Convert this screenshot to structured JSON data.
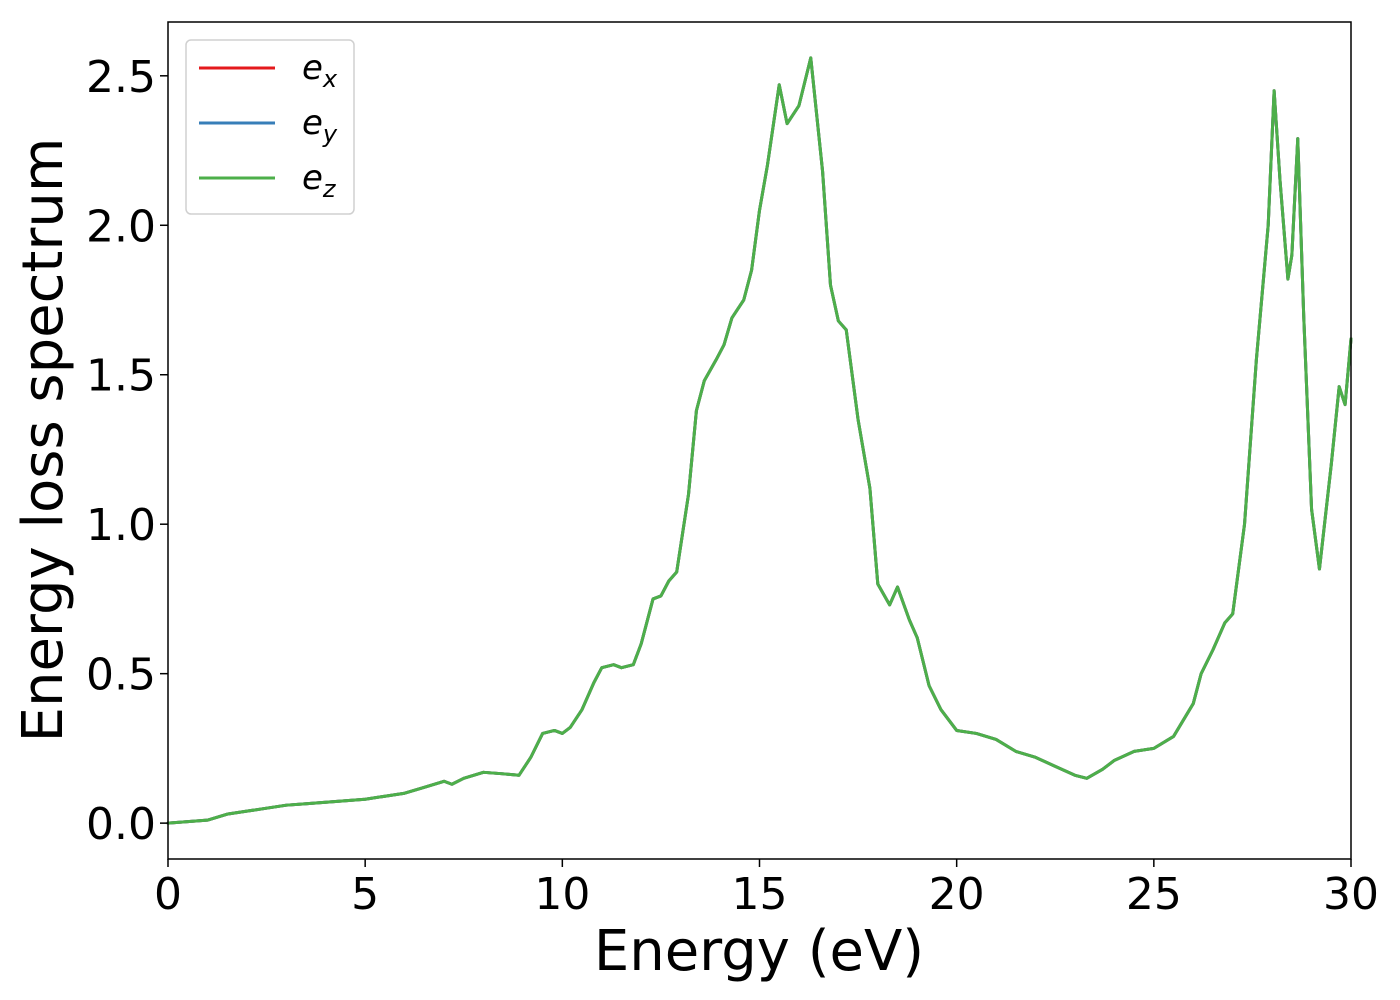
{
  "chart_data": {
    "type": "line",
    "xlabel": "Energy (eV)",
    "ylabel": "Energy loss spectrum",
    "xlim": [
      0,
      30
    ],
    "ylim": [
      -0.12,
      2.68
    ],
    "xticks": [
      "0",
      "5",
      "10",
      "15",
      "20",
      "25",
      "30"
    ],
    "yticks": [
      "0.0",
      "0.5",
      "1.0",
      "1.5",
      "2.0",
      "2.5"
    ],
    "grid": false,
    "legend_position": "top-left",
    "legend": [
      {
        "base": "e",
        "sub": "x",
        "color": "#e41a1c"
      },
      {
        "base": "e",
        "sub": "y",
        "color": "#377eb8"
      },
      {
        "base": "e",
        "sub": "z",
        "color": "#4daf4a"
      }
    ],
    "series": [
      {
        "name": "ex",
        "color": "#e41a1c",
        "x": [
          0,
          1,
          1.5,
          2,
          2.5,
          3,
          3.5,
          4,
          4.5,
          5,
          5.5,
          6,
          6.5,
          7,
          7.2,
          7.5,
          8,
          8.5,
          8.9,
          9.2,
          9.5,
          9.8,
          10,
          10.2,
          10.5,
          10.8,
          11,
          11.3,
          11.5,
          11.8,
          12,
          12.3,
          12.5,
          12.7,
          12.9,
          13.2,
          13.4,
          13.6,
          13.9,
          14.1,
          14.3,
          14.6,
          14.8,
          15,
          15.2,
          15.5,
          15.7,
          16,
          16.3,
          16.6,
          16.8,
          17,
          17.2,
          17.5,
          17.8,
          18,
          18.3,
          18.5,
          18.8,
          19,
          19.3,
          19.6,
          20,
          20.5,
          21,
          21.5,
          22,
          22.5,
          23,
          23.3,
          23.7,
          24,
          24.5,
          25,
          25.5,
          26,
          26.2,
          26.5,
          26.8,
          27,
          27.3,
          27.6,
          27.9,
          28.05,
          28.2,
          28.4,
          28.5,
          28.65,
          28.8,
          29,
          29.2,
          29.5,
          29.7,
          29.85,
          30
        ],
        "values": [
          0,
          0.01,
          0.03,
          0.04,
          0.05,
          0.06,
          0.065,
          0.07,
          0.075,
          0.08,
          0.09,
          0.1,
          0.12,
          0.14,
          0.13,
          0.15,
          0.17,
          0.165,
          0.16,
          0.22,
          0.3,
          0.31,
          0.3,
          0.32,
          0.38,
          0.47,
          0.52,
          0.53,
          0.52,
          0.53,
          0.6,
          0.75,
          0.76,
          0.81,
          0.84,
          1.1,
          1.38,
          1.48,
          1.55,
          1.6,
          1.69,
          1.75,
          1.85,
          2.05,
          2.2,
          2.47,
          2.34,
          2.4,
          2.56,
          2.18,
          1.8,
          1.68,
          1.65,
          1.35,
          1.12,
          0.8,
          0.73,
          0.79,
          0.68,
          0.62,
          0.46,
          0.38,
          0.31,
          0.3,
          0.28,
          0.24,
          0.22,
          0.19,
          0.16,
          0.15,
          0.18,
          0.21,
          0.24,
          0.25,
          0.29,
          0.4,
          0.5,
          0.58,
          0.67,
          0.7,
          1.0,
          1.55,
          2.0,
          2.45,
          2.15,
          1.82,
          1.9,
          2.29,
          1.7,
          1.05,
          0.85,
          1.2,
          1.46,
          1.4,
          1.62
        ]
      },
      {
        "name": "ey",
        "color": "#377eb8",
        "x": [
          0,
          1,
          1.5,
          2,
          2.5,
          3,
          3.5,
          4,
          4.5,
          5,
          5.5,
          6,
          6.5,
          7,
          7.2,
          7.5,
          8,
          8.5,
          8.9,
          9.2,
          9.5,
          9.8,
          10,
          10.2,
          10.5,
          10.8,
          11,
          11.3,
          11.5,
          11.8,
          12,
          12.3,
          12.5,
          12.7,
          12.9,
          13.2,
          13.4,
          13.6,
          13.9,
          14.1,
          14.3,
          14.6,
          14.8,
          15,
          15.2,
          15.5,
          15.7,
          16,
          16.3,
          16.6,
          16.8,
          17,
          17.2,
          17.5,
          17.8,
          18,
          18.3,
          18.5,
          18.8,
          19,
          19.3,
          19.6,
          20,
          20.5,
          21,
          21.5,
          22,
          22.5,
          23,
          23.3,
          23.7,
          24,
          24.5,
          25,
          25.5,
          26,
          26.2,
          26.5,
          26.8,
          27,
          27.3,
          27.6,
          27.9,
          28.05,
          28.2,
          28.4,
          28.5,
          28.65,
          28.8,
          29,
          29.2,
          29.5,
          29.7,
          29.85,
          30
        ],
        "values": [
          0,
          0.01,
          0.03,
          0.04,
          0.05,
          0.06,
          0.065,
          0.07,
          0.075,
          0.08,
          0.09,
          0.1,
          0.12,
          0.14,
          0.13,
          0.15,
          0.17,
          0.165,
          0.16,
          0.22,
          0.3,
          0.31,
          0.3,
          0.32,
          0.38,
          0.47,
          0.52,
          0.53,
          0.52,
          0.53,
          0.6,
          0.75,
          0.76,
          0.81,
          0.84,
          1.1,
          1.38,
          1.48,
          1.55,
          1.6,
          1.69,
          1.75,
          1.85,
          2.05,
          2.2,
          2.47,
          2.34,
          2.4,
          2.56,
          2.18,
          1.8,
          1.68,
          1.65,
          1.35,
          1.12,
          0.8,
          0.73,
          0.79,
          0.68,
          0.62,
          0.46,
          0.38,
          0.31,
          0.3,
          0.28,
          0.24,
          0.22,
          0.19,
          0.16,
          0.15,
          0.18,
          0.21,
          0.24,
          0.25,
          0.29,
          0.4,
          0.5,
          0.58,
          0.67,
          0.7,
          1.0,
          1.55,
          2.0,
          2.45,
          2.15,
          1.82,
          1.9,
          2.29,
          1.7,
          1.05,
          0.85,
          1.2,
          1.46,
          1.4,
          1.62
        ]
      },
      {
        "name": "ez",
        "color": "#4daf4a",
        "x": [
          0,
          1,
          1.5,
          2,
          2.5,
          3,
          3.5,
          4,
          4.5,
          5,
          5.5,
          6,
          6.5,
          7,
          7.2,
          7.5,
          8,
          8.5,
          8.9,
          9.2,
          9.5,
          9.8,
          10,
          10.2,
          10.5,
          10.8,
          11,
          11.3,
          11.5,
          11.8,
          12,
          12.3,
          12.5,
          12.7,
          12.9,
          13.2,
          13.4,
          13.6,
          13.9,
          14.1,
          14.3,
          14.6,
          14.8,
          15,
          15.2,
          15.5,
          15.7,
          16,
          16.3,
          16.6,
          16.8,
          17,
          17.2,
          17.5,
          17.8,
          18,
          18.3,
          18.5,
          18.8,
          19,
          19.3,
          19.6,
          20,
          20.5,
          21,
          21.5,
          22,
          22.5,
          23,
          23.3,
          23.7,
          24,
          24.5,
          25,
          25.5,
          26,
          26.2,
          26.5,
          26.8,
          27,
          27.3,
          27.6,
          27.9,
          28.05,
          28.2,
          28.4,
          28.5,
          28.65,
          28.8,
          29,
          29.2,
          29.5,
          29.7,
          29.85,
          30
        ],
        "values": [
          0,
          0.01,
          0.03,
          0.04,
          0.05,
          0.06,
          0.065,
          0.07,
          0.075,
          0.08,
          0.09,
          0.1,
          0.12,
          0.14,
          0.13,
          0.15,
          0.17,
          0.165,
          0.16,
          0.22,
          0.3,
          0.31,
          0.3,
          0.32,
          0.38,
          0.47,
          0.52,
          0.53,
          0.52,
          0.53,
          0.6,
          0.75,
          0.76,
          0.81,
          0.84,
          1.1,
          1.38,
          1.48,
          1.55,
          1.6,
          1.69,
          1.75,
          1.85,
          2.05,
          2.2,
          2.47,
          2.34,
          2.4,
          2.56,
          2.18,
          1.8,
          1.68,
          1.65,
          1.35,
          1.12,
          0.8,
          0.73,
          0.79,
          0.68,
          0.62,
          0.46,
          0.38,
          0.31,
          0.3,
          0.28,
          0.24,
          0.22,
          0.19,
          0.16,
          0.15,
          0.18,
          0.21,
          0.24,
          0.25,
          0.29,
          0.4,
          0.5,
          0.58,
          0.67,
          0.7,
          1.0,
          1.55,
          2.0,
          2.45,
          2.15,
          1.82,
          1.9,
          2.29,
          1.7,
          1.05,
          0.85,
          1.2,
          1.46,
          1.4,
          1.62
        ]
      }
    ]
  }
}
